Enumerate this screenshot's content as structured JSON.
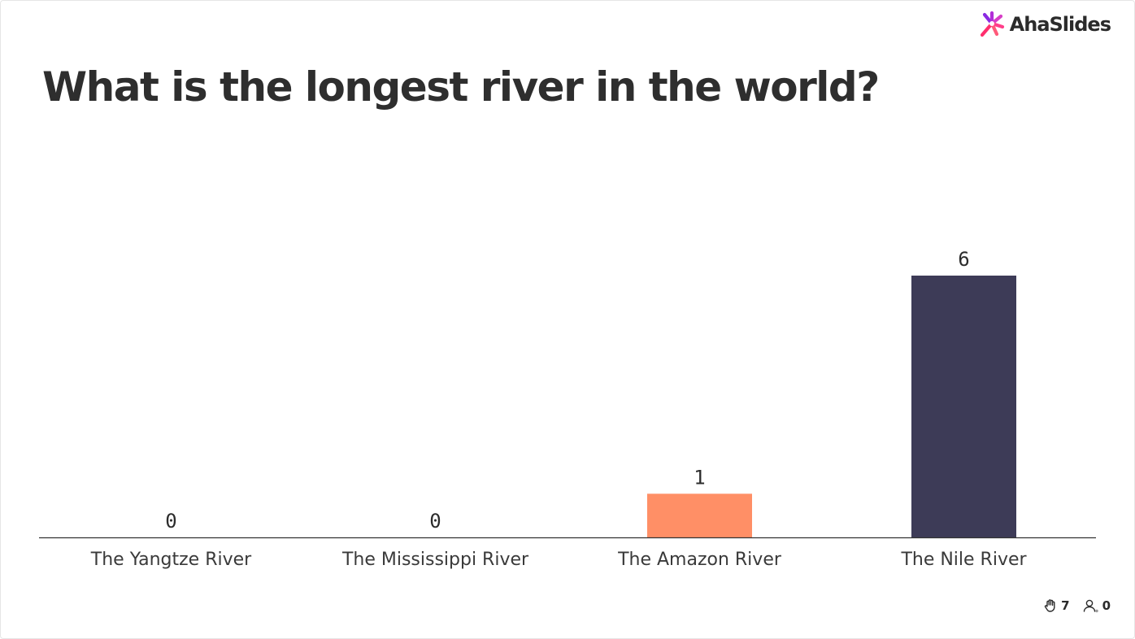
{
  "brand": {
    "logo_text": "AhaSlides"
  },
  "slide": {
    "title": "What is the longest river in the world?"
  },
  "stats": {
    "reactions": "7",
    "participants": "0"
  },
  "colors": {
    "accent": "#ff8f66",
    "dark": "#3d3b57",
    "axis": "#333333"
  },
  "chart_data": {
    "type": "bar",
    "title": "What is the longest river in the world?",
    "categories": [
      "The Yangtze River",
      "The Mississippi River",
      "The Amazon River",
      "The Nile River"
    ],
    "values": [
      0,
      0,
      1,
      6
    ],
    "bar_colors": [
      "#ff8f66",
      "#ff8f66",
      "#ff8f66",
      "#3d3b57"
    ],
    "ylim": [
      0,
      6
    ],
    "grid": false,
    "legend": "none"
  }
}
